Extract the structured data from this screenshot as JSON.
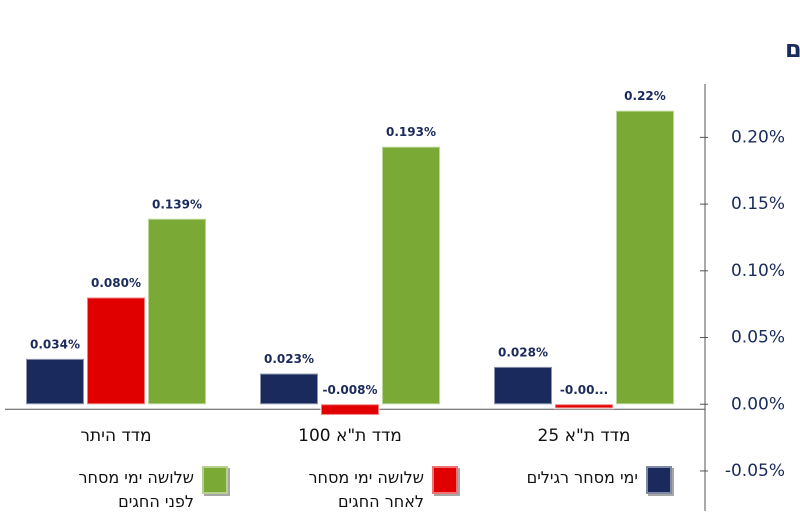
{
  "chart_data": {
    "type": "bar",
    "title": "תשואה יומית ממוצעת לפני חגים, אחריהם ובימי מסחר רגילים",
    "categories": [
      "מדד היתר",
      "מדד ת\"א 100",
      "מדד ת\"א 25"
    ],
    "series": [
      {
        "name": "ימי מסחר רגילים",
        "color": "#1b2a5c",
        "values": [
          0.034,
          0.023,
          0.028
        ],
        "value_labels": [
          "0.034%",
          "0.023%",
          "0.028%"
        ]
      },
      {
        "name": "שלושה ימי מסחר לאחר החגים",
        "color": "#e00000",
        "values": [
          0.08,
          -0.008,
          -0.003
        ],
        "value_labels": [
          "0.080%",
          "-0.008%",
          "-0.00..."
        ]
      },
      {
        "name": "שלושה ימי מסחר לפני החגים",
        "color": "#7aaa35",
        "values": [
          0.139,
          0.193,
          0.22
        ],
        "value_labels": [
          "0.139%",
          "0.193%",
          "0.22%"
        ]
      }
    ],
    "ylim": [
      -0.08,
      0.24
    ],
    "yticks": [
      {
        "value": -0.05,
        "label": "-0.05%"
      },
      {
        "value": 0,
        "label": "0.00%"
      },
      {
        "value": 0.05,
        "label": "0.05%"
      },
      {
        "value": 0.1,
        "label": "0.10%"
      },
      {
        "value": 0.15,
        "label": "0.15%"
      },
      {
        "value": 0.2,
        "label": "0.20%"
      }
    ]
  }
}
